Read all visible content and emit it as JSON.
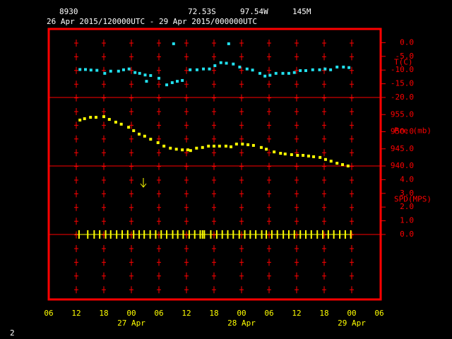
{
  "header": {
    "station": "8930",
    "latitude": "72.53S",
    "longitude": "97.54W",
    "elevation": "145M",
    "period": "26 Apr 2015/120000UTC - 29 Apr 2015/000000UTC"
  },
  "page_number": "2",
  "chart_data": [
    {
      "type": "scatter",
      "y_label": "T(C)",
      "xlim": [
        6,
        78
      ],
      "ylim": [
        -20,
        5
      ],
      "yticks": [
        {
          "value": 0,
          "label": "0.0"
        },
        {
          "value": -5,
          "label": "-5.0"
        },
        {
          "value": -10,
          "label": "-10.0"
        },
        {
          "value": -15,
          "label": "-15.0"
        },
        {
          "value": -20,
          "label": "-20.0"
        }
      ],
      "series": [
        {
          "color": "#22e0ee",
          "x": [
            12.8,
            14,
            15.2,
            16.5,
            18.2,
            19.5,
            21.2,
            22.3,
            23.5,
            24.8,
            25.8,
            27,
            27.3,
            28.2,
            30,
            31.7,
            32.9,
            33.2,
            34,
            35.1,
            36.8,
            38.3,
            39.7,
            41,
            42.2,
            43.5,
            44.7,
            45.2,
            46.2,
            47.6,
            49.2,
            50.4,
            52,
            53.1,
            54.2,
            55.5,
            57,
            58.3,
            59.5,
            60.8,
            62,
            63.5,
            65,
            66.2,
            67.4,
            68.8,
            70.2,
            71.4
          ],
          "values": [
            -9.8,
            -9.8,
            -10.0,
            -10.1,
            -11.2,
            -10.4,
            -10.4,
            -9.9,
            -9.6,
            -10.9,
            -11.2,
            -11.8,
            -14.1,
            -12.0,
            -13.0,
            -15.4,
            -14.6,
            -0.4,
            -14.1,
            -13.8,
            -9.9,
            -9.9,
            -9.6,
            -9.6,
            -8.4,
            -7.3,
            -7.5,
            -0.4,
            -7.8,
            -8.9,
            -9.6,
            -10.0,
            -11.2,
            -12.2,
            -11.9,
            -11.2,
            -11.2,
            -11.2,
            -10.9,
            -10.2,
            -10.2,
            -9.9,
            -9.9,
            -9.6,
            -9.9,
            -8.9,
            -8.9,
            -9.1
          ]
        }
      ]
    },
    {
      "type": "scatter",
      "y_label": "Pre (mb)",
      "xlim": [
        6,
        78
      ],
      "ylim": [
        940,
        960
      ],
      "yticks": [
        {
          "value": 955,
          "label": "955.0"
        },
        {
          "value": 950,
          "label": "950.0"
        },
        {
          "value": 945,
          "label": "945.0"
        },
        {
          "value": 940,
          "label": "940.0"
        }
      ],
      "series": [
        {
          "color": "#ffff00",
          "x": [
            12.8,
            13.8,
            15.1,
            16.3,
            18.0,
            19.2,
            20.6,
            21.8,
            23.4,
            24.5,
            25.7,
            26.9,
            28.2,
            29.8,
            31.1,
            32.5,
            33.8,
            35.1,
            36.3,
            36.9,
            38.2,
            39.5,
            40.8,
            42.0,
            43.2,
            44.6,
            45.7,
            46.9,
            48.2,
            49.4,
            50.6,
            52.3,
            53.4,
            55.1,
            56.5,
            57.5,
            58.9,
            60.2,
            61.4,
            62.6,
            63.7,
            65.1,
            66.3,
            67.5,
            68.8,
            70.0,
            71.2
          ],
          "values": [
            953.4,
            953.8,
            954.2,
            954.2,
            954.4,
            953.6,
            952.8,
            952.2,
            951.3,
            950.3,
            949.3,
            948.7,
            947.8,
            946.8,
            945.8,
            945.2,
            944.9,
            944.7,
            944.7,
            944.5,
            945.2,
            945.4,
            945.8,
            945.8,
            945.8,
            945.8,
            945.6,
            946.4,
            946.4,
            946.2,
            946.0,
            945.4,
            944.9,
            944.1,
            943.7,
            943.5,
            943.3,
            943.1,
            943.1,
            942.9,
            942.7,
            942.5,
            941.9,
            941.4,
            940.8,
            940.4,
            940.0
          ]
        }
      ]
    },
    {
      "type": "wind",
      "y_label": "SPD(MPS)",
      "xlim": [
        6,
        78
      ],
      "ylim": [
        0,
        5
      ],
      "yticks": [
        {
          "value": 4,
          "label": "4.0"
        },
        {
          "value": 3,
          "label": "3.0"
        },
        {
          "value": 2,
          "label": "2.0"
        },
        {
          "value": 1,
          "label": "1.0"
        },
        {
          "value": 0,
          "label": "0.0"
        }
      ],
      "xticks": [
        {
          "value": 6,
          "label": "06"
        },
        {
          "value": 12,
          "label": "12"
        },
        {
          "value": 18,
          "label": "18"
        },
        {
          "value": 24,
          "label": "00"
        },
        {
          "value": 30,
          "label": "06"
        },
        {
          "value": 36,
          "label": "12"
        },
        {
          "value": 42,
          "label": "18"
        },
        {
          "value": 48,
          "label": "00"
        },
        {
          "value": 54,
          "label": "06"
        },
        {
          "value": 60,
          "label": "12"
        },
        {
          "value": 66,
          "label": "18"
        },
        {
          "value": 72,
          "label": "00"
        },
        {
          "value": 78,
          "label": "06"
        }
      ],
      "date_labels": [
        {
          "value": 24,
          "label": "27 Apr"
        },
        {
          "value": 48,
          "label": "28 Apr"
        },
        {
          "value": 72,
          "label": "29 Apr"
        }
      ],
      "series": [
        {
          "color": "#ffff00",
          "x": [
            12.6,
            14.5,
            15.9,
            17.1,
            18.4,
            19.5,
            20.8,
            22.0,
            23.2,
            24.5,
            25.7,
            26.8,
            28.1,
            29.3,
            30.5,
            31.7,
            33.0,
            34.1,
            35.3,
            36.6,
            37.8,
            39.0,
            39.5,
            39.9,
            41.3,
            42.6,
            43.8,
            45.0,
            46.2,
            47.5,
            48.7,
            49.9,
            51.1,
            52.4,
            53.4,
            54.6,
            55.8,
            57.1,
            58.3,
            59.5,
            60.8,
            62.0,
            63.2,
            64.5,
            65.7,
            66.9,
            68.1,
            69.4,
            70.6,
            71.8
          ],
          "values": [
            0,
            0,
            0,
            0,
            0,
            0,
            0,
            0,
            0,
            0,
            0,
            0,
            0,
            0,
            0,
            0,
            0,
            0,
            0,
            0,
            0,
            0,
            0,
            0,
            0,
            0,
            0,
            0,
            0,
            0,
            0,
            0,
            0,
            0,
            0,
            0,
            0,
            0,
            0,
            0,
            0,
            0,
            0,
            0,
            0,
            0,
            0,
            0,
            0,
            0
          ]
        }
      ]
    }
  ]
}
